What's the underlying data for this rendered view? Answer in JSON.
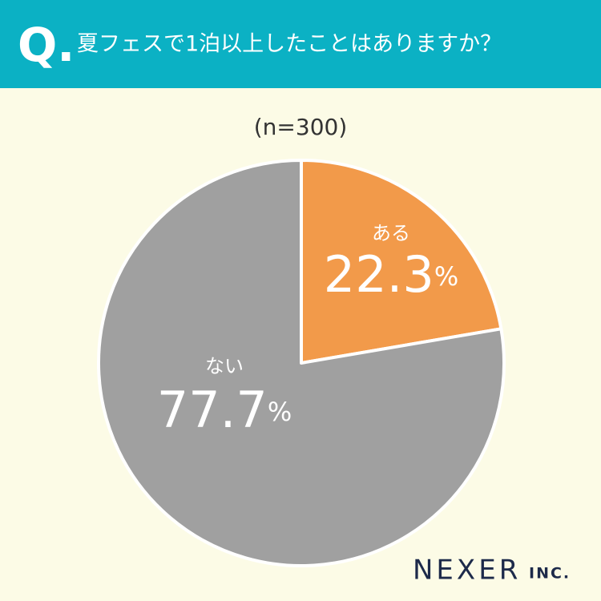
{
  "question_marker": "Q.",
  "logo": {
    "name": "NEXER",
    "suffix": "INC."
  },
  "chart_data": {
    "type": "pie",
    "title": "夏フェスで1泊以上したことはありますか？",
    "subtitle": "(n=300)",
    "categories": [
      "ある",
      "ない"
    ],
    "values": [
      22.3,
      77.7
    ],
    "value_labels": [
      "22.3%",
      "77.7%"
    ],
    "colors": [
      "#f29a4a",
      "#a0a0a0"
    ]
  }
}
